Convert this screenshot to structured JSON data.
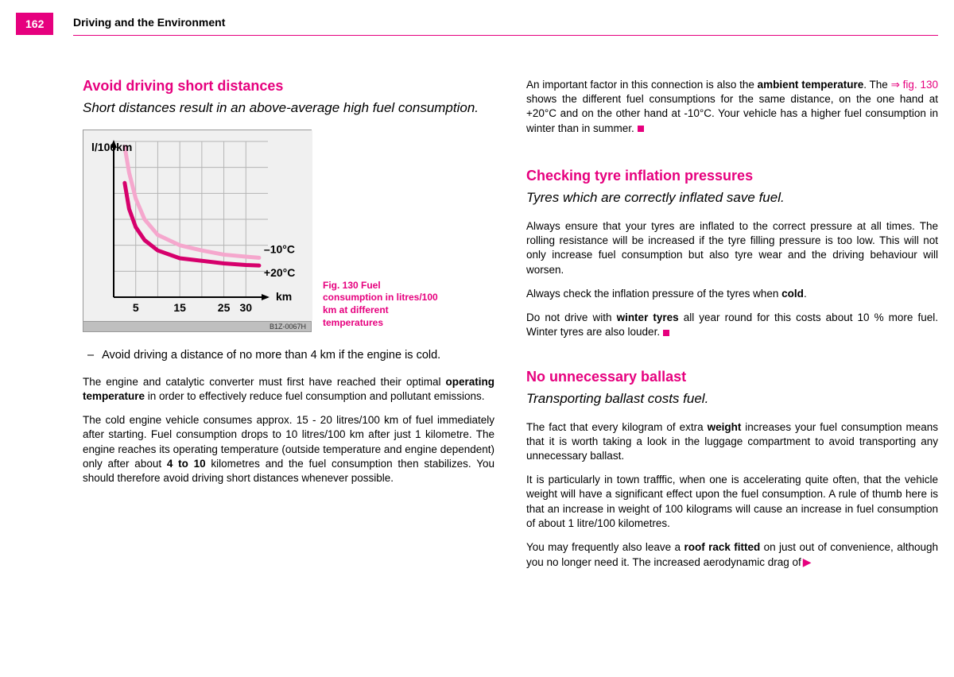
{
  "header": {
    "page_number": "162",
    "title": "Driving and the Environment"
  },
  "left": {
    "heading": "Avoid driving short distances",
    "subtitle": "Short distances result in an above-average high fuel consumption.",
    "figure": {
      "caption": "Fig. 130  Fuel consumption in litres/100 km at different temperatures",
      "code": "B1Z-0067H",
      "y_label": "l/100km",
      "x_label": "km",
      "x_ticks": [
        "5",
        "15",
        "25",
        "30"
      ],
      "x_tick_positions": [
        5,
        15,
        25,
        30
      ],
      "x_range": [
        0,
        35
      ],
      "y_range": [
        0,
        30
      ],
      "grid_x": [
        5,
        10,
        15,
        20,
        25,
        30
      ],
      "grid_y": [
        5,
        10,
        15,
        20,
        25,
        30
      ],
      "series": [
        {
          "label": "–10°C",
          "color": "#f5a7cd",
          "points": [
            [
              2.5,
              29
            ],
            [
              3.5,
              24
            ],
            [
              5,
              19
            ],
            [
              7,
              15
            ],
            [
              10,
              12
            ],
            [
              15,
              10
            ],
            [
              20,
              9
            ],
            [
              25,
              8.2
            ],
            [
              30,
              7.8
            ],
            [
              33,
              7.6
            ]
          ]
        },
        {
          "label": "+20°C",
          "color": "#d6006c",
          "points": [
            [
              2.5,
              22
            ],
            [
              3.5,
              17
            ],
            [
              5,
              13.5
            ],
            [
              7,
              11
            ],
            [
              10,
              9
            ],
            [
              15,
              7.5
            ],
            [
              20,
              7
            ],
            [
              25,
              6.5
            ],
            [
              30,
              6.2
            ],
            [
              33,
              6.1
            ]
          ]
        }
      ],
      "axis_color": "#000000",
      "grid_color": "#b5b5b5",
      "bg_color": "#f0f0f0",
      "line_width": 5,
      "label_fontsize": 14
    },
    "bullet": "Avoid driving a distance of no more than 4 km if the engine is cold.",
    "para1_a": "The engine and catalytic converter must first have reached their optimal ",
    "para1_bold": "operating temperature",
    "para1_b": " in order to effectively reduce fuel consumption and pollutant emissions.",
    "para2_a": "The cold engine vehicle consumes approx. 15 - 20 litres/100 km of fuel immediately after starting. Fuel consumption drops to 10 litres/100 km after just 1 kilometre. The engine reaches its operating temperature (outside temperature and engine dependent) only after about ",
    "para2_bold": "4 to 10",
    "para2_b": "  kilometres and the fuel consumption then stabilizes. You should therefore avoid driving short distances whenever possible."
  },
  "right": {
    "intro_a": "An important factor in this connection is also the ",
    "intro_bold": "ambient temperature",
    "intro_b": ". The ",
    "intro_link": "⇒ fig. 130",
    "intro_c": " shows the different fuel consumptions for the same distance, on the one hand at +20°C and on the other hand at -10°C. Your vehicle has a higher fuel consumption in winter than in summer.",
    "tyre": {
      "heading": "Checking tyre inflation pressures",
      "subtitle": "Tyres which are correctly inflated save fuel.",
      "p1": "Always ensure that your tyres are inflated to the correct pressure at all times. The rolling resistance will be increased if the tyre filling pressure is too low. This will not only increase fuel consumption but also tyre wear and the driving behaviour will worsen.",
      "p2_a": "Always check the inflation pressure of the tyres when ",
      "p2_bold": "cold",
      "p2_b": ".",
      "p3_a": "Do not drive with ",
      "p3_bold": "winter tyres",
      "p3_b": " all year round for this costs about 10 % more fuel. Winter tyres are also louder."
    },
    "ballast": {
      "heading": "No unnecessary ballast",
      "subtitle": "Transporting ballast costs fuel.",
      "p1_a": "The fact that every kilogram of extra ",
      "p1_bold": "weight",
      "p1_b": " increases your fuel consumption means that it is worth taking a look in the luggage compartment to avoid transporting any unnecessary ballast.",
      "p2": "It is particularly in town trafffic, when one is accelerating quite often, that the vehicle weight will have a significant effect upon the fuel consumption. A rule of thumb here is that an increase in weight of 100 kilograms will cause an increase in fuel consumption of about 1 litre/100 kilometres.",
      "p3_a": "You may frequently also leave a ",
      "p3_bold": "roof rack fitted",
      "p3_b": " on just out of convenience, although you no longer need it. The increased aerodynamic drag of"
    }
  }
}
